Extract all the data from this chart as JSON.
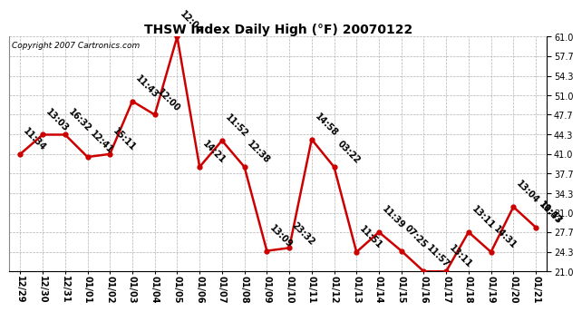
{
  "title": "THSW Index Daily High (°F) 20070122",
  "copyright": "Copyright 2007 Cartronics.com",
  "x_labels": [
    "12/29",
    "12/30",
    "12/31",
    "01/01",
    "01/02",
    "01/03",
    "01/04",
    "01/05",
    "01/06",
    "01/07",
    "01/08",
    "01/09",
    "01/10",
    "01/11",
    "01/12",
    "01/13",
    "01/14",
    "01/15",
    "01/16",
    "01/17",
    "01/18",
    "01/19",
    "01/20",
    "01/21"
  ],
  "y_values": [
    41.0,
    44.3,
    44.3,
    40.5,
    41.0,
    50.0,
    47.7,
    61.0,
    38.8,
    43.3,
    38.8,
    24.5,
    25.0,
    43.5,
    38.8,
    24.3,
    27.7,
    24.5,
    21.0,
    21.0,
    27.7,
    24.3,
    32.0,
    28.5
  ],
  "time_labels": [
    "11:34",
    "13:03",
    "16:32",
    "12:41",
    "15:11",
    "11:43",
    "12:00",
    "12:04",
    "14:21",
    "11:52",
    "12:38",
    "13:09",
    "23:32",
    "14:58",
    "03:22",
    "11:51",
    "11:39",
    "07:25",
    "11:57",
    "13:11",
    "13:11",
    "14:31",
    "13:04",
    "10:43"
  ],
  "last_two_labels": [
    "10:43",
    "11:57"
  ],
  "line_color": "#cc0000",
  "marker_color": "#cc0000",
  "background_color": "#ffffff",
  "grid_color": "#b0b0b0",
  "ylim_min": 21.0,
  "ylim_max": 61.0,
  "yticks": [
    21.0,
    24.3,
    27.7,
    31.0,
    34.3,
    37.7,
    41.0,
    44.3,
    47.7,
    51.0,
    54.3,
    57.7,
    61.0
  ],
  "annotation_fontsize": 7,
  "title_fontsize": 10,
  "tick_fontsize": 7,
  "copyright_fontsize": 6.5
}
